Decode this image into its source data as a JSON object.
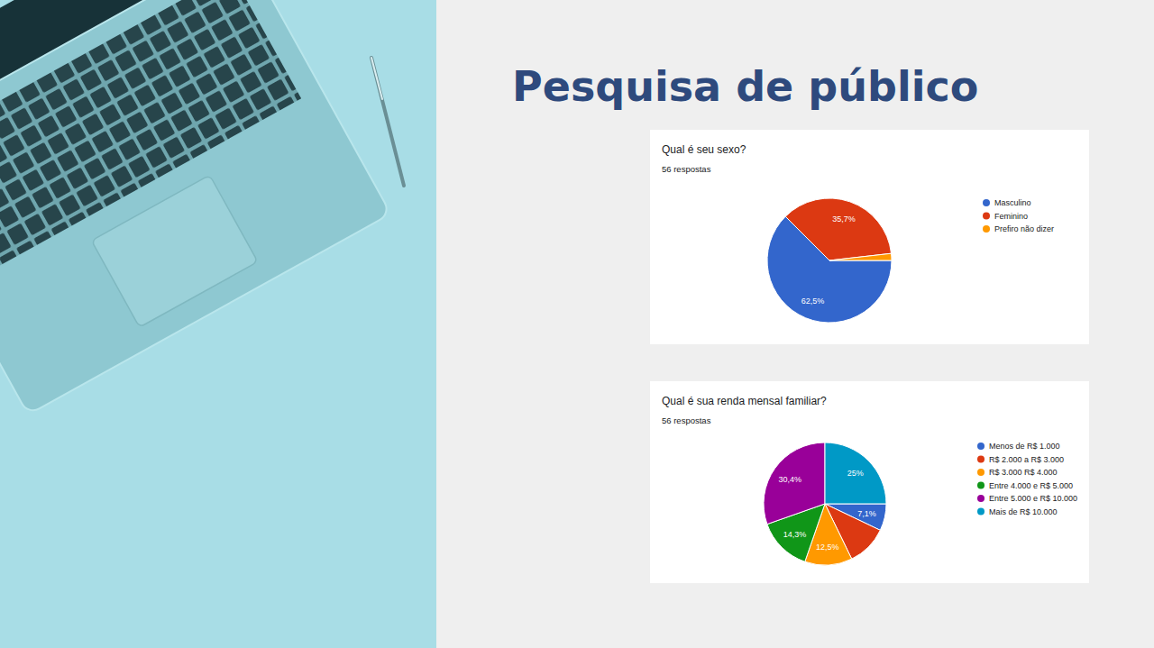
{
  "title": "Pesquisa de público",
  "chart_data": [
    {
      "type": "pie",
      "title": "Qual é seu sexo?",
      "subtitle": "56 respostas",
      "categories": [
        "Masculino",
        "Feminino",
        "Prefiro não dizer"
      ],
      "values": [
        62.5,
        35.7,
        1.8
      ],
      "value_labels": [
        "62,5%",
        "35,7%",
        null
      ],
      "colors": [
        "#3366cc",
        "#dc3912",
        "#ff9900"
      ],
      "data_labels": true,
      "legend": "right"
    },
    {
      "type": "pie",
      "title": "Qual é sua renda mensal familiar?",
      "subtitle": "56 respostas",
      "categories": [
        "Menos de R$ 1.000",
        "R$ 2.000 a R$ 3.000",
        "R$ 3.000 R$ 4.000",
        "Entre 4.000 e R$ 5.000",
        "Entre 5.000 e R$ 10.000",
        "Mais de R$ 10.000"
      ],
      "values": [
        7.1,
        10.7,
        12.5,
        14.3,
        30.4,
        25
      ],
      "value_labels": [
        "7,1%",
        null,
        "12,5%",
        "14,3%",
        "30,4%",
        "25%"
      ],
      "colors": [
        "#3366cc",
        "#dc3912",
        "#ff9900",
        "#109618",
        "#990099",
        "#0099c6"
      ],
      "data_labels": true,
      "legend": "right"
    }
  ]
}
